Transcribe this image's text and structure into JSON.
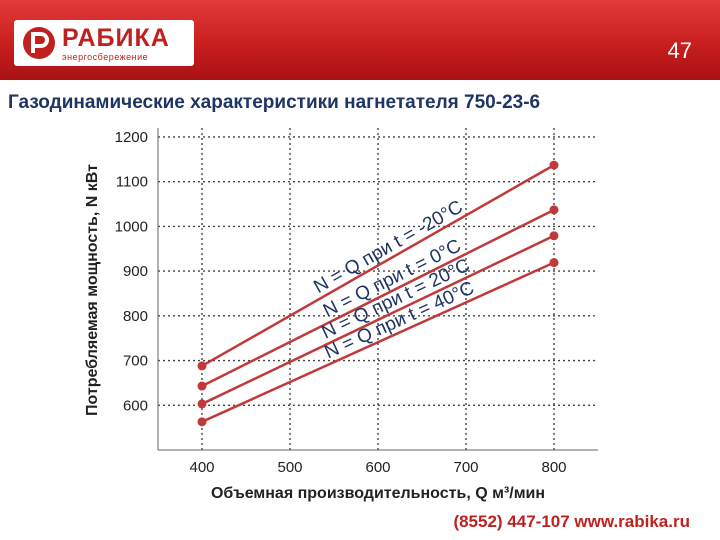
{
  "header": {
    "logo_name": "РАБИКА",
    "logo_tagline": "энергосбережение",
    "slide_number": "47"
  },
  "title": "Газодинамические характеристики нагнетателя 750-23-6",
  "footer": "(8552) 447-107  www.rabika.ru",
  "colors": {
    "brand": "#c81e1e",
    "line": "#c0393b",
    "title": "#1f3564"
  },
  "chart_data": {
    "type": "line",
    "x": [
      400,
      800
    ],
    "xlabel": "Объемная производительность, Q м³/мин",
    "ylabel": "Потребляемая мощность, N кВт",
    "xlim": [
      350,
      850
    ],
    "ylim": [
      500,
      1220
    ],
    "xticks": [
      400,
      500,
      600,
      700,
      800
    ],
    "yticks": [
      600,
      700,
      800,
      900,
      1000,
      1100,
      1200
    ],
    "grid": true,
    "series": [
      {
        "name": "N = Q при t = -20°C",
        "values": [
          688,
          1137
        ]
      },
      {
        "name": "N = Q при t = 0°C",
        "values": [
          643,
          1037
        ]
      },
      {
        "name": "N = Q при t = 20°C",
        "values": [
          603,
          979
        ]
      },
      {
        "name": "N = Q при t = 40°C",
        "values": [
          563,
          919
        ]
      }
    ]
  }
}
